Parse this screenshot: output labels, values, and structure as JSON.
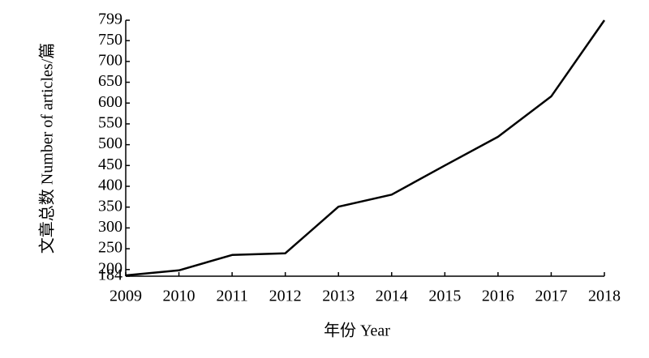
{
  "chart_data": {
    "type": "line",
    "x_label": "年份 Year",
    "y_label": "文章总数 Number of articles/篇",
    "categories": [
      "2009",
      "2010",
      "2011",
      "2012",
      "2013",
      "2014",
      "2015",
      "2016",
      "2017",
      "2018"
    ],
    "values": [
      186,
      198,
      235,
      239,
      351,
      380,
      450,
      519,
      616,
      799
    ],
    "color": "#000000",
    "ylim": [
      184,
      799
    ],
    "yticks": [
      184,
      200,
      250,
      300,
      350,
      400,
      450,
      500,
      550,
      600,
      650,
      700,
      750,
      799
    ],
    "grid": false
  }
}
